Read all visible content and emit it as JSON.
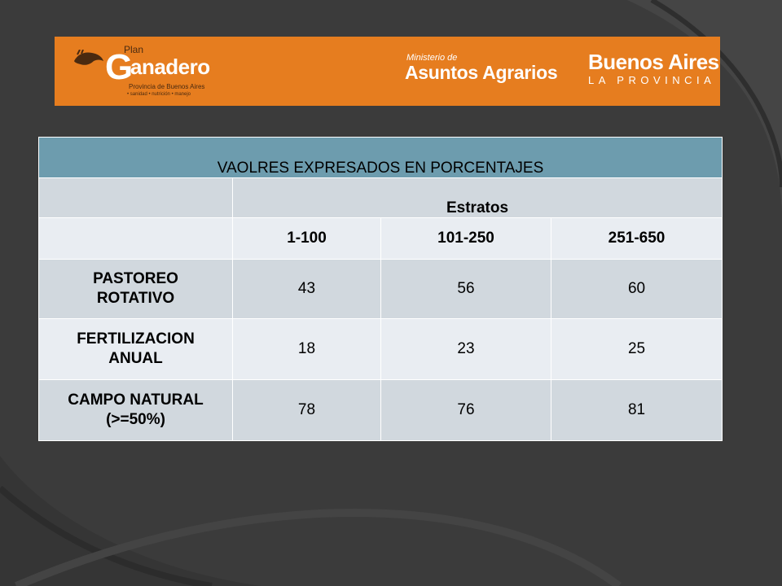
{
  "banner": {
    "plan_label": "Plan",
    "g_letter": "G",
    "brand_rest": "anadero",
    "subtitle": "Provincia de Buenos Aires",
    "tagline": "• sanidad  • nutrición  • manejo",
    "ministry_small": "Ministerio de",
    "ministry_big": "Asuntos Agrarios",
    "province_big": "Buenos Aires",
    "province_small": "LA PROVINCIA",
    "color": "#e67d1f"
  },
  "table": {
    "title": "VAOLRES EXPRESADOS EN PORCENTAJES",
    "group_header": "Estratos",
    "columns": [
      "1-100",
      "101-250",
      "251-650"
    ],
    "rows": [
      {
        "label": "PASTOREO ROTATIVO",
        "values": [
          "43",
          "56",
          "60"
        ]
      },
      {
        "label": "FERTILIZACION ANUAL",
        "values": [
          "18",
          "23",
          "25"
        ]
      },
      {
        "label": "CAMPO NATURAL (>=50%)",
        "values": [
          "78",
          "76",
          "81"
        ]
      }
    ],
    "header_color": "#6d9cae"
  }
}
